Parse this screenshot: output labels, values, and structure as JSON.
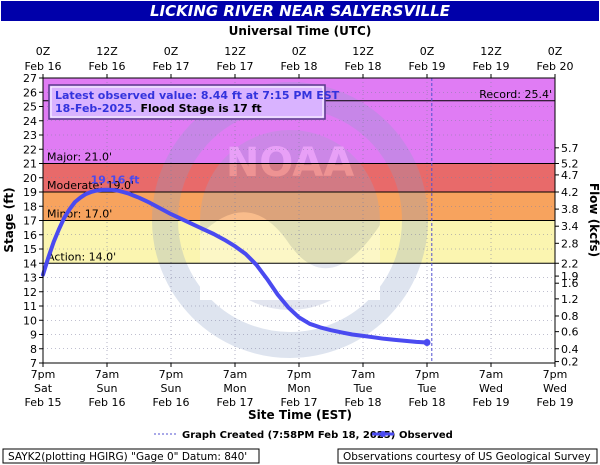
{
  "title": "LICKING RIVER NEAR SALYERSVILLE",
  "top_axis_title": "Universal Time (UTC)",
  "bottom_axis_title": "Site Time (EST)",
  "left_axis_title": "Stage (ft)",
  "right_axis_title": "Flow (kcfs)",
  "info_box": {
    "line1": "Latest observed value: 8.44 ft at 7:15 PM EST",
    "line2_a": "18-Feb-2025.",
    "line2_b": " Flood Stage is 17 ft"
  },
  "legend": {
    "created": "Graph Created (7:58PM Feb 18, 2025)",
    "observed": "Observed"
  },
  "footer_left": "SAYK2(plotting HGIRG) \"Gage 0\" Datum: 840'",
  "footer_right": "Observations courtesy of US Geological Survey",
  "watermark": "NOAA",
  "colors": {
    "title_bg": "#0000aa",
    "record_band": "#e07cf4",
    "major_band": "#e86a6a",
    "moderate_band": "#f7a35e",
    "minor_band": "#fbf5b0",
    "action_band": "#ffff9e",
    "normal_band": "#ffffff",
    "observed_line": "#4a4af0",
    "crest_label": "#4a4af0",
    "box_text": "#3333dd"
  },
  "chart_data": {
    "type": "line",
    "title": "LICKING RIVER NEAR SALYERSVILLE",
    "ylabel": "Stage (ft)",
    "y2label": "Flow (kcfs)",
    "ylim": [
      7,
      27
    ],
    "y_ticks": [
      "7",
      "8",
      "9",
      "10",
      "11",
      "12",
      "13",
      "14",
      "15",
      "16",
      "17",
      "18",
      "19",
      "20",
      "21",
      "22",
      "23",
      "24",
      "25",
      "26",
      "27"
    ],
    "y2_ticks": [
      {
        "label": "0.2",
        "stage": 7.1
      },
      {
        "label": "0.4",
        "stage": 8.0
      },
      {
        "label": "0.6",
        "stage": 9.2
      },
      {
        "label": "0.8",
        "stage": 10.3
      },
      {
        "label": "1.2",
        "stage": 11.5
      },
      {
        "label": "1.6",
        "stage": 12.6
      },
      {
        "label": "1.9",
        "stage": 13.1
      },
      {
        "label": "2.2",
        "stage": 14.0
      },
      {
        "label": "2.8",
        "stage": 15.4
      },
      {
        "label": "3.4",
        "stage": 16.6
      },
      {
        "label": "3.8",
        "stage": 17.8
      },
      {
        "label": "4.2",
        "stage": 19.0
      },
      {
        "label": "4.7",
        "stage": 20.2
      },
      {
        "label": "5.2",
        "stage": 21.0
      },
      {
        "label": "5.7",
        "stage": 22.1
      }
    ],
    "x_unit": "hours since 7pm EST Feb 15",
    "xlim": [
      0,
      96
    ],
    "bottom_ticks": [
      {
        "line1": "7pm",
        "line2": "Sat",
        "line3": "Feb 15"
      },
      {
        "line1": "7am",
        "line2": "Sun",
        "line3": "Feb 16"
      },
      {
        "line1": "7pm",
        "line2": "Sun",
        "line3": "Feb 16"
      },
      {
        "line1": "7am",
        "line2": "Mon",
        "line3": "Feb 17"
      },
      {
        "line1": "7pm",
        "line2": "Mon",
        "line3": "Feb 17"
      },
      {
        "line1": "7am",
        "line2": "Tue",
        "line3": "Feb 18"
      },
      {
        "line1": "7pm",
        "line2": "Tue",
        "line3": "Feb 18"
      },
      {
        "line1": "7am",
        "line2": "Wed",
        "line3": "Feb 19"
      },
      {
        "line1": "7pm",
        "line2": "Wed",
        "line3": "Feb 19"
      }
    ],
    "top_ticks": [
      {
        "line1": "0Z",
        "line2": "Feb 16"
      },
      {
        "line1": "12Z",
        "line2": "Feb 16"
      },
      {
        "line1": "0Z",
        "line2": "Feb 17"
      },
      {
        "line1": "12Z",
        "line2": "Feb 17"
      },
      {
        "line1": "0Z",
        "line2": "Feb 18"
      },
      {
        "line1": "12Z",
        "line2": "Feb 18"
      },
      {
        "line1": "0Z",
        "line2": "Feb 19"
      },
      {
        "line1": "12Z",
        "line2": "Feb 19"
      },
      {
        "line1": "0Z",
        "line2": "Feb 20"
      }
    ],
    "thresholds": [
      {
        "label": "Record: 25.4'",
        "stage": 25.4,
        "align": "right"
      },
      {
        "label": "Major: 21.0'",
        "stage": 21.0,
        "align": "left"
      },
      {
        "label": "Moderate: 19.0'",
        "stage": 19.0,
        "align": "left"
      },
      {
        "label": "Minor: 17.0'",
        "stage": 17.0,
        "align": "left"
      },
      {
        "label": "Action: 14.0'",
        "stage": 14.0,
        "align": "left"
      }
    ],
    "bands": [
      {
        "from": 21.0,
        "to": 27.0,
        "color_key": "record_band"
      },
      {
        "from": 19.0,
        "to": 21.0,
        "color_key": "major_band"
      },
      {
        "from": 17.0,
        "to": 19.0,
        "color_key": "moderate_band"
      },
      {
        "from": 14.0,
        "to": 17.0,
        "color_key": "minor_band"
      },
      {
        "from": 7.0,
        "to": 14.0,
        "color_key": "normal_band"
      }
    ],
    "crest_label": "19.16 ft",
    "crest": {
      "x": 13.5,
      "y": 19.16
    },
    "created_x": 72.9,
    "series": [
      {
        "name": "Observed",
        "x": [
          0,
          1,
          2,
          3,
          4,
          5,
          6,
          7,
          8,
          9,
          10,
          11,
          12,
          13,
          14,
          15,
          16,
          17,
          18,
          20,
          22,
          24,
          26,
          28,
          30,
          32,
          34,
          36,
          38,
          40,
          42,
          44,
          46,
          48,
          50,
          52,
          54,
          56,
          58,
          60,
          62,
          64,
          66,
          68,
          70,
          72
        ],
        "y": [
          13.2,
          14.4,
          15.5,
          16.4,
          17.2,
          17.8,
          18.3,
          18.6,
          18.85,
          19.0,
          19.1,
          19.15,
          19.16,
          19.15,
          19.1,
          19.0,
          18.9,
          18.75,
          18.6,
          18.25,
          17.85,
          17.45,
          17.1,
          16.75,
          16.4,
          16.05,
          15.65,
          15.2,
          14.65,
          13.9,
          12.9,
          11.8,
          10.9,
          10.2,
          9.75,
          9.5,
          9.3,
          9.15,
          9.0,
          8.9,
          8.8,
          8.7,
          8.62,
          8.55,
          8.48,
          8.44
        ]
      }
    ]
  }
}
